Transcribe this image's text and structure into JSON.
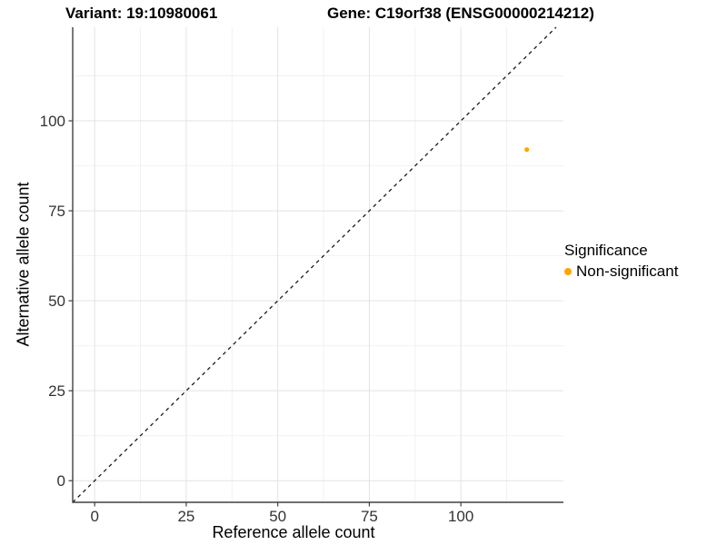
{
  "title": {
    "variant_label": "Variant: 19:10980061",
    "gene_label": "Gene: C19orf38 (ENSG00000214212)"
  },
  "legend": {
    "title": "Significance",
    "entries": [
      {
        "label": "Non-significant",
        "color": "#FFA500"
      }
    ]
  },
  "chart_data": {
    "type": "scatter",
    "title": "Variant: 19:10980061   Gene: C19orf38 (ENSG00000214212)",
    "xlabel": "Reference allele count",
    "ylabel": "Alternative allele count",
    "xlim": [
      -6,
      128
    ],
    "ylim": [
      -6,
      126
    ],
    "x_ticks": [
      0,
      25,
      50,
      75,
      100
    ],
    "y_ticks": [
      0,
      25,
      50,
      75,
      100
    ],
    "grid": true,
    "legend_position": "right",
    "series": [
      {
        "name": "Non-significant",
        "color": "#FFA500",
        "points": [
          {
            "x": 118,
            "y": 92
          }
        ]
      }
    ],
    "reference_line": {
      "type": "identity y=x",
      "style": "dashed",
      "color": "#1A1A1A"
    }
  },
  "style": {
    "background": "#FFFFFF",
    "grid_major": "#E3E3E3",
    "grid_minor": "#F0F0F0",
    "axis_line": "#404040",
    "tick_label": "#333333",
    "point_color": "#FFA500"
  }
}
